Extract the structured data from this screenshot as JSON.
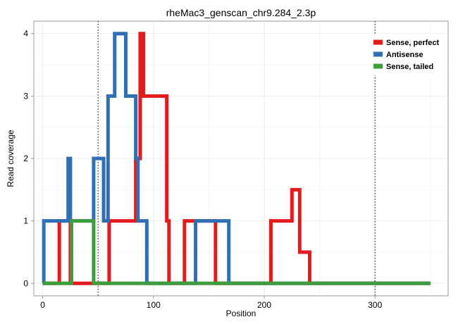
{
  "chart_data": {
    "type": "line",
    "title": "rheMac3_genscan_chr9.284_2.3p",
    "xlabel": "Position",
    "ylabel": "Read coverage",
    "xlim": [
      -8,
      366
    ],
    "ylim": [
      -0.2,
      4.2
    ],
    "x_ticks": [
      0,
      100,
      200,
      300
    ],
    "y_ticks": [
      0,
      1,
      2,
      3,
      4
    ],
    "grid": true,
    "legend_position": "top-right",
    "vlines": [
      50,
      300
    ],
    "series": [
      {
        "name": "Sense, perfect",
        "color": "#e41a1c",
        "points": [
          [
            0,
            0
          ],
          [
            15,
            0
          ],
          [
            15,
            1
          ],
          [
            25,
            1
          ],
          [
            25,
            0
          ],
          [
            60,
            0
          ],
          [
            60,
            1
          ],
          [
            84,
            1
          ],
          [
            84,
            2
          ],
          [
            88,
            2
          ],
          [
            88,
            4
          ],
          [
            91,
            4
          ],
          [
            91,
            3
          ],
          [
            112,
            3
          ],
          [
            112,
            1
          ],
          [
            114,
            1
          ],
          [
            114,
            0
          ],
          [
            128,
            0
          ],
          [
            128,
            1
          ],
          [
            156,
            1
          ],
          [
            156,
            0
          ],
          [
            206,
            0
          ],
          [
            206,
            1
          ],
          [
            225,
            1
          ],
          [
            225,
            1.5
          ],
          [
            232,
            1.5
          ],
          [
            232,
            0.5
          ],
          [
            241,
            0.5
          ],
          [
            241,
            0
          ],
          [
            350,
            0
          ]
        ]
      },
      {
        "name": "Antisense",
        "color": "#2f6fb3",
        "points": [
          [
            0,
            0
          ],
          [
            1,
            0
          ],
          [
            1,
            1
          ],
          [
            23,
            1
          ],
          [
            23,
            2
          ],
          [
            25,
            2
          ],
          [
            25,
            1
          ],
          [
            46,
            1
          ],
          [
            46,
            2
          ],
          [
            55,
            2
          ],
          [
            55,
            1
          ],
          [
            59,
            1
          ],
          [
            59,
            3
          ],
          [
            65,
            3
          ],
          [
            65,
            4
          ],
          [
            75,
            4
          ],
          [
            75,
            3
          ],
          [
            84,
            3
          ],
          [
            84,
            2
          ],
          [
            86,
            2
          ],
          [
            86,
            1
          ],
          [
            94,
            1
          ],
          [
            94,
            0
          ],
          [
            138,
            0
          ],
          [
            138,
            1
          ],
          [
            168,
            1
          ],
          [
            168,
            0
          ],
          [
            350,
            0
          ]
        ]
      },
      {
        "name": "Sense, tailed",
        "color": "#3d9e3c",
        "points": [
          [
            0,
            0
          ],
          [
            26,
            0
          ],
          [
            26,
            1
          ],
          [
            46,
            1
          ],
          [
            46,
            0
          ],
          [
            350,
            0
          ]
        ]
      }
    ]
  }
}
